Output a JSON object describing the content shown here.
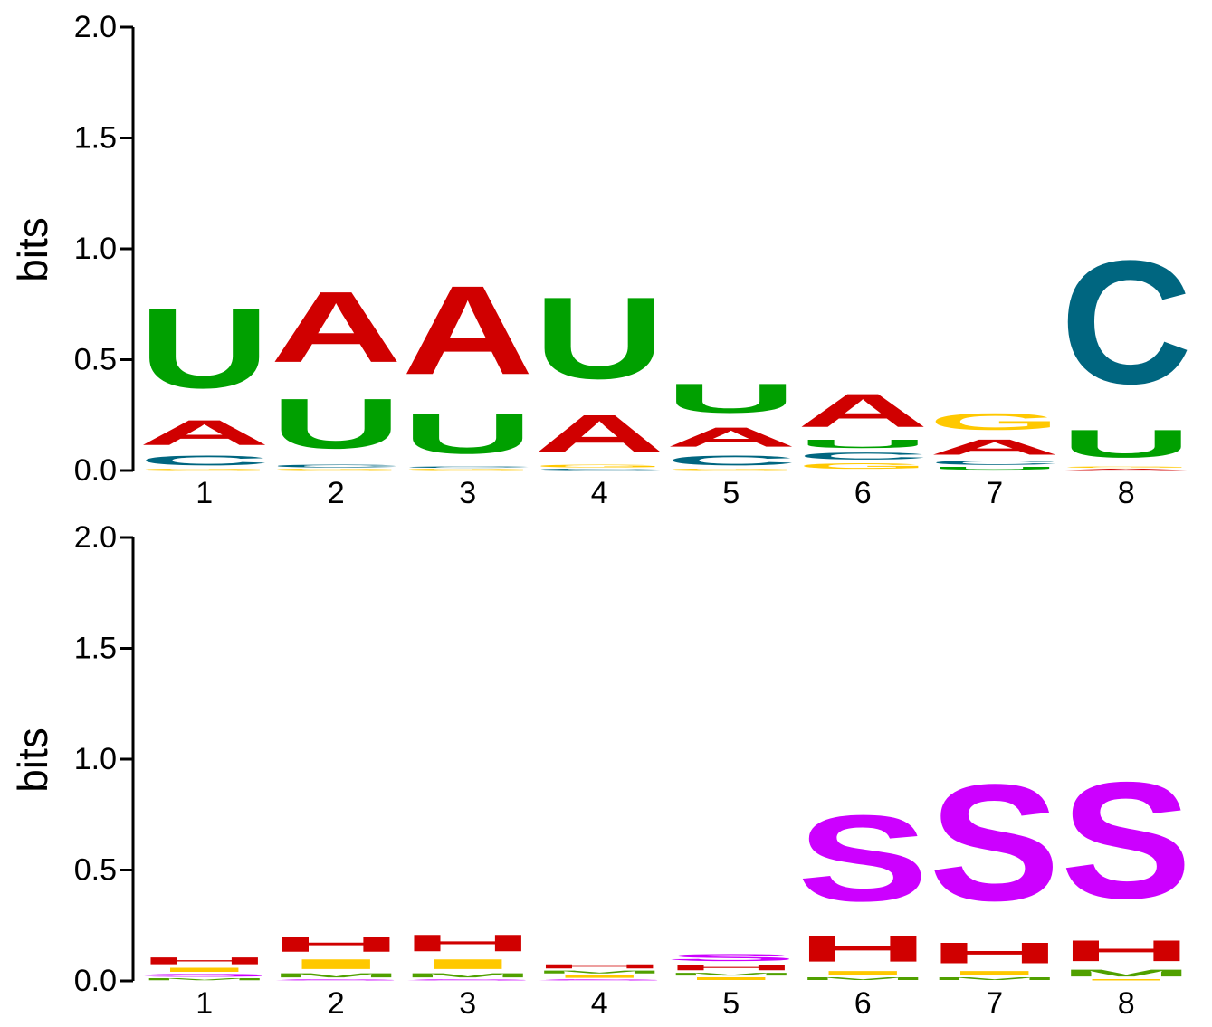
{
  "chart_data": [
    {
      "type": "sequence_logo",
      "alphabet": "RNA",
      "ylabel": "bits",
      "ylim": [
        0,
        2.0
      ],
      "yticks": [
        "0.0",
        "0.5",
        "1.0",
        "1.5",
        "2.0"
      ],
      "positions": [
        "1",
        "2",
        "3",
        "4",
        "5",
        "6",
        "7",
        "8"
      ],
      "colors": {
        "A": "#d00000",
        "C": "#006680",
        "G": "#ffc800",
        "U": "#00a000"
      },
      "stacks": [
        [
          {
            "letter": "G",
            "bits": 0.01
          },
          {
            "letter": "C",
            "bits": 0.07
          },
          {
            "letter": "A",
            "bits": 0.18
          },
          {
            "letter": "U",
            "bits": 0.58
          }
        ],
        [
          {
            "letter": "G",
            "bits": 0.01
          },
          {
            "letter": "C",
            "bits": 0.02
          },
          {
            "letter": "U",
            "bits": 0.36
          },
          {
            "letter": "A",
            "bits": 0.51
          }
        ],
        [
          {
            "letter": "G",
            "bits": 0.01
          },
          {
            "letter": "C",
            "bits": 0.01
          },
          {
            "letter": "U",
            "bits": 0.29
          },
          {
            "letter": "A",
            "bits": 0.64
          }
        ],
        [
          {
            "letter": "C",
            "bits": 0.01
          },
          {
            "letter": "G",
            "bits": 0.02
          },
          {
            "letter": "A",
            "bits": 0.27
          },
          {
            "letter": "U",
            "bits": 0.59
          }
        ],
        [
          {
            "letter": "G",
            "bits": 0.01
          },
          {
            "letter": "C",
            "bits": 0.07
          },
          {
            "letter": "A",
            "bits": 0.14
          },
          {
            "letter": "U",
            "bits": 0.21
          }
        ],
        [
          {
            "letter": "G",
            "bits": 0.04
          },
          {
            "letter": "C",
            "bits": 0.05
          },
          {
            "letter": "U",
            "bits": 0.06
          },
          {
            "letter": "A",
            "bits": 0.24
          }
        ],
        [
          {
            "letter": "U",
            "bits": 0.02
          },
          {
            "letter": "C",
            "bits": 0.03
          },
          {
            "letter": "A",
            "bits": 0.11
          },
          {
            "letter": "G",
            "bits": 0.12
          }
        ],
        [
          {
            "letter": "A",
            "bits": 0.01
          },
          {
            "letter": "G",
            "bits": 0.01
          },
          {
            "letter": "U",
            "bits": 0.2
          },
          {
            "letter": "C",
            "bits": 0.89
          }
        ]
      ]
    },
    {
      "type": "sequence_logo",
      "alphabet": "structure",
      "ylabel": "bits",
      "ylim": [
        0,
        2.0
      ],
      "yticks": [
        "0.0",
        "0.5",
        "1.0",
        "1.5",
        "2.0"
      ],
      "positions": [
        "1",
        "2",
        "3",
        "4",
        "5",
        "6",
        "7",
        "8"
      ],
      "colors": {
        "S": "#cc00ff",
        "H": "#d00000",
        "I": "#ffc800",
        "M": "#50a000"
      },
      "stacks": [
        [
          {
            "letter": "M",
            "bits": 0.015
          },
          {
            "letter": "S",
            "bits": 0.02
          },
          {
            "letter": "I",
            "bits": 0.03
          },
          {
            "letter": "H",
            "bits": 0.05
          }
        ],
        [
          {
            "letter": "S",
            "bits": 0.01
          },
          {
            "letter": "M",
            "bits": 0.03
          },
          {
            "letter": "I",
            "bits": 0.07
          },
          {
            "letter": "H",
            "bits": 0.11
          }
        ],
        [
          {
            "letter": "S",
            "bits": 0.01
          },
          {
            "letter": "M",
            "bits": 0.03
          },
          {
            "letter": "I",
            "bits": 0.07
          },
          {
            "letter": "H",
            "bits": 0.12
          }
        ],
        [
          {
            "letter": "S",
            "bits": 0.01
          },
          {
            "letter": "I",
            "bits": 0.02
          },
          {
            "letter": "M",
            "bits": 0.02
          },
          {
            "letter": "H",
            "bits": 0.03
          }
        ],
        [
          {
            "letter": "I",
            "bits": 0.02
          },
          {
            "letter": "M",
            "bits": 0.02
          },
          {
            "letter": "H",
            "bits": 0.04
          },
          {
            "letter": "S",
            "bits": 0.05
          }
        ],
        [
          {
            "letter": "M",
            "bits": 0.02
          },
          {
            "letter": "I",
            "bits": 0.03
          },
          {
            "letter": "H",
            "bits": 0.19
          },
          {
            "letter": "S",
            "bits": 0.62
          }
        ],
        [
          {
            "letter": "M",
            "bits": 0.02
          },
          {
            "letter": "I",
            "bits": 0.03
          },
          {
            "letter": "H",
            "bits": 0.15
          },
          {
            "letter": "S",
            "bits": 0.84
          }
        ],
        [
          {
            "letter": "I",
            "bits": 0.01
          },
          {
            "letter": "M",
            "bits": 0.05
          },
          {
            "letter": "H",
            "bits": 0.15
          },
          {
            "letter": "S",
            "bits": 0.84
          }
        ]
      ]
    }
  ]
}
